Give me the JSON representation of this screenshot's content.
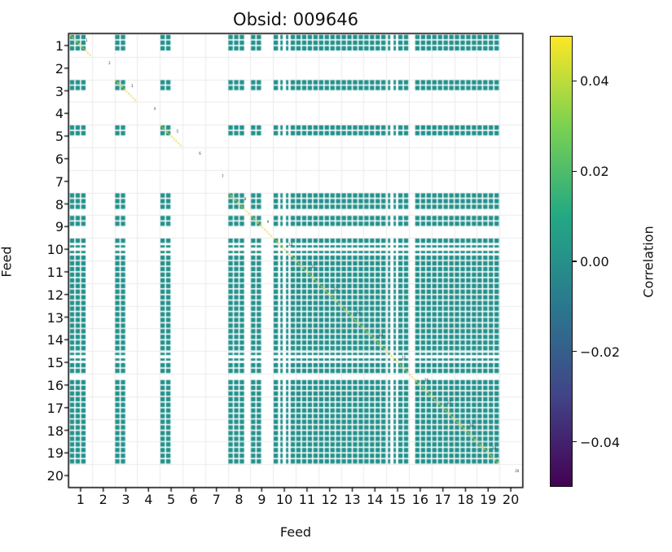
{
  "title": "Obsid: 009646",
  "chart_data": {
    "type": "heatmap",
    "title": "Obsid: 009646",
    "xlabel": "Feed",
    "ylabel": "Feed",
    "x_ticks": [
      "1",
      "2",
      "3",
      "4",
      "5",
      "6",
      "7",
      "8",
      "9",
      "10",
      "11",
      "12",
      "13",
      "14",
      "15",
      "16",
      "17",
      "18",
      "19",
      "20"
    ],
    "y_ticks": [
      "1",
      "2",
      "3",
      "4",
      "5",
      "6",
      "7",
      "8",
      "9",
      "10",
      "11",
      "12",
      "13",
      "14",
      "15",
      "16",
      "17",
      "18",
      "19",
      "20"
    ],
    "n_feeds": 20,
    "sidebands_per_feed": 4,
    "description": "80x80 feed-sideband correlation matrix; teal cells ~0.00 correlation, white cells flagged/masked, main diagonal saturated (yellow).",
    "feed_sideband_active": [
      [
        1,
        1,
        1,
        0
      ],
      [
        0,
        0,
        0,
        0
      ],
      [
        1,
        1,
        0,
        0
      ],
      [
        0,
        0,
        0,
        0
      ],
      [
        1,
        1,
        0,
        0
      ],
      [
        0,
        0,
        0,
        0
      ],
      [
        0,
        0,
        0,
        0
      ],
      [
        1,
        1,
        1,
        0
      ],
      [
        1,
        1,
        0,
        0
      ],
      [
        1,
        0.5,
        0.5,
        1
      ],
      [
        1,
        1,
        1,
        1
      ],
      [
        1,
        1,
        1,
        1
      ],
      [
        1,
        1,
        1,
        1
      ],
      [
        1,
        1,
        1,
        1
      ],
      [
        0.5,
        0.5,
        1,
        1
      ],
      [
        0,
        1,
        1,
        1
      ],
      [
        1,
        1,
        1,
        1
      ],
      [
        1,
        1,
        1,
        1
      ],
      [
        1,
        1,
        1,
        1
      ],
      [
        0,
        0,
        0,
        0
      ]
    ],
    "diagonal_feed_labels": [
      "1",
      "2",
      "3",
      "4",
      "5",
      "6",
      "7",
      "8",
      "9",
      "10",
      "11",
      "12",
      "13",
      "14",
      "15",
      "16",
      "17",
      "18",
      "19",
      "20"
    ],
    "off_diagonal_value": 0.0,
    "diagonal_value": 1.0,
    "colorbar": {
      "label": "Correlation",
      "vmin": -0.05,
      "vmax": 0.05,
      "tick_labels": [
        "0.04",
        "0.02",
        "0.00",
        "−0.02",
        "−0.04"
      ],
      "tick_values": [
        0.04,
        0.02,
        0.0,
        -0.02,
        -0.04
      ],
      "gradient_stops": [
        "#fde725",
        "#7ad151",
        "#22a884",
        "#2a788e",
        "#414487",
        "#440154"
      ]
    },
    "colors": {
      "cell_teal": "#21918c",
      "diagonal_line": "#eed52f",
      "grid": "#ebebeb",
      "spine": "#111111",
      "background": "#ffffff",
      "tiny_label": "#333333"
    },
    "grid": "light gray lines at every feed boundary",
    "legend_position": "right colorbar"
  }
}
